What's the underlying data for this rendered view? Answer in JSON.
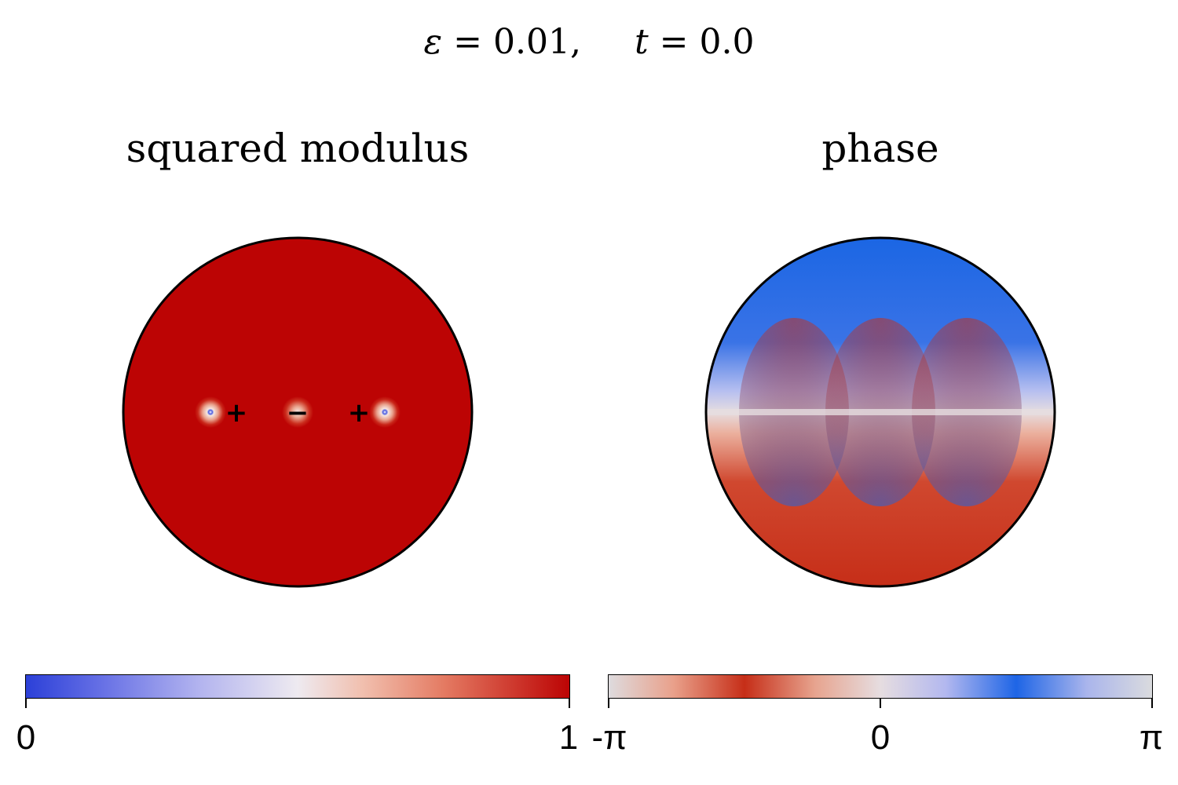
{
  "header": {
    "eps_symbol": "ε",
    "eps_value": "= 0.01,",
    "t_symbol": "t",
    "t_value": "= 0.0"
  },
  "panels": {
    "left_title": "squared modulus",
    "right_title": "phase"
  },
  "markers": {
    "plus": "+",
    "minus": "−"
  },
  "colorbar_left": {
    "ticks": [
      "0",
      "1"
    ]
  },
  "colorbar_right": {
    "ticks": [
      "-π",
      "0",
      "π"
    ]
  },
  "colors": {
    "modulus_fill": "#bc0404",
    "phase_blue": "#1b66e4",
    "phase_red": "#c62e18",
    "neutral": "#e5dde0"
  }
}
